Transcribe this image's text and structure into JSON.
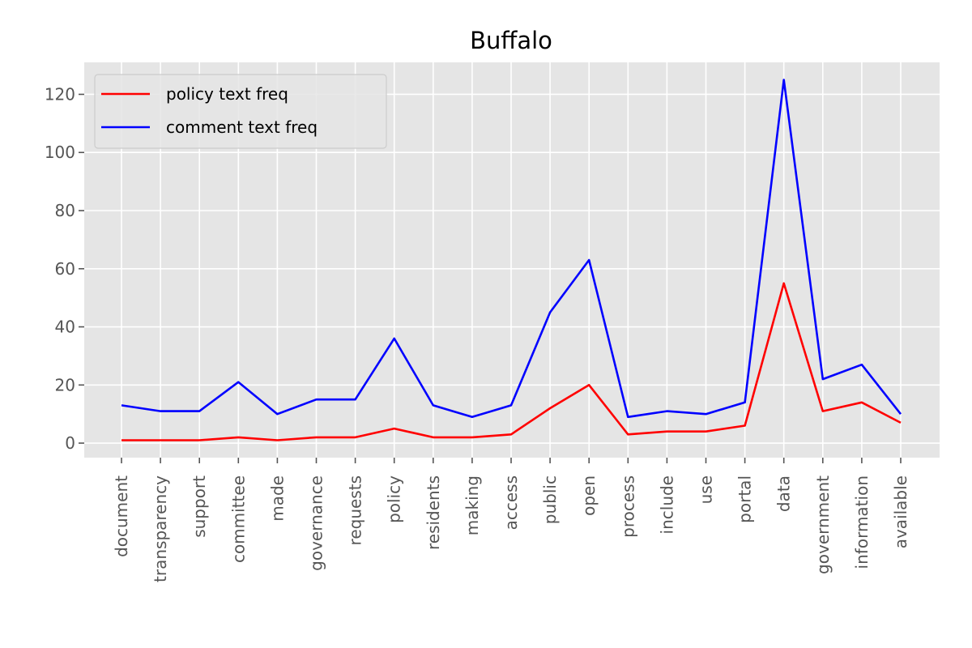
{
  "chart_data": {
    "type": "line",
    "title": "Buffalo",
    "xlabel": "",
    "ylabel": "",
    "categories": [
      "document",
      "transparency",
      "support",
      "committee",
      "made",
      "governance",
      "requests",
      "policy",
      "residents",
      "making",
      "access",
      "public",
      "open",
      "process",
      "include",
      "use",
      "portal",
      "data",
      "government",
      "information",
      "available"
    ],
    "series": [
      {
        "name": "policy text freq",
        "color": "#ff0000",
        "values": [
          1,
          1,
          1,
          2,
          1,
          2,
          2,
          5,
          2,
          2,
          3,
          12,
          20,
          3,
          4,
          4,
          6,
          55,
          11,
          14,
          7
        ]
      },
      {
        "name": "comment text freq",
        "color": "#0000ff",
        "values": [
          13,
          11,
          11,
          21,
          10,
          15,
          15,
          36,
          13,
          9,
          13,
          45,
          63,
          9,
          11,
          10,
          14,
          125,
          22,
          27,
          10
        ]
      }
    ],
    "ylim": [
      -5,
      131
    ],
    "yticks": [
      0,
      20,
      40,
      60,
      80,
      100,
      120
    ],
    "grid": true,
    "legend": "upper-left",
    "background": "#e5e5e5"
  }
}
